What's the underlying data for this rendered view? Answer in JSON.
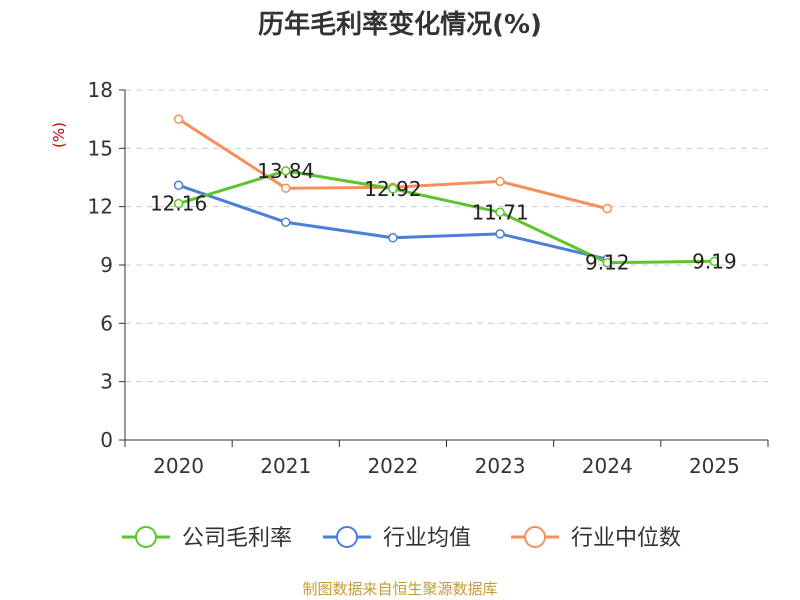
{
  "chart_data": {
    "type": "line",
    "title": "历年毛利率变化情况(%)",
    "ylabel": "(%)",
    "xlabel": "",
    "source": "制图数据来自恒生聚源数据库",
    "categories": [
      "2020",
      "2021",
      "2022",
      "2023",
      "2024",
      "2025"
    ],
    "ylim": [
      0,
      18
    ],
    "yticks": [
      0,
      3,
      6,
      9,
      12,
      15,
      18
    ],
    "grid": true,
    "legend_position": "bottom",
    "series": [
      {
        "name": "公司毛利率",
        "color": "#5cc52c",
        "values": [
          12.16,
          13.84,
          12.92,
          11.71,
          9.12,
          9.19
        ],
        "labels": [
          "12.16",
          "13.84",
          "12.92",
          "11.71",
          "9.12",
          "9.19"
        ]
      },
      {
        "name": "行业均值",
        "color": "#4a7fd8",
        "values": [
          13.1,
          11.2,
          10.4,
          10.6,
          9.3,
          null
        ],
        "labels": []
      },
      {
        "name": "行业中位数",
        "color": "#f5905a",
        "values": [
          16.5,
          12.95,
          13.0,
          13.3,
          11.9,
          null
        ],
        "labels": []
      }
    ]
  }
}
